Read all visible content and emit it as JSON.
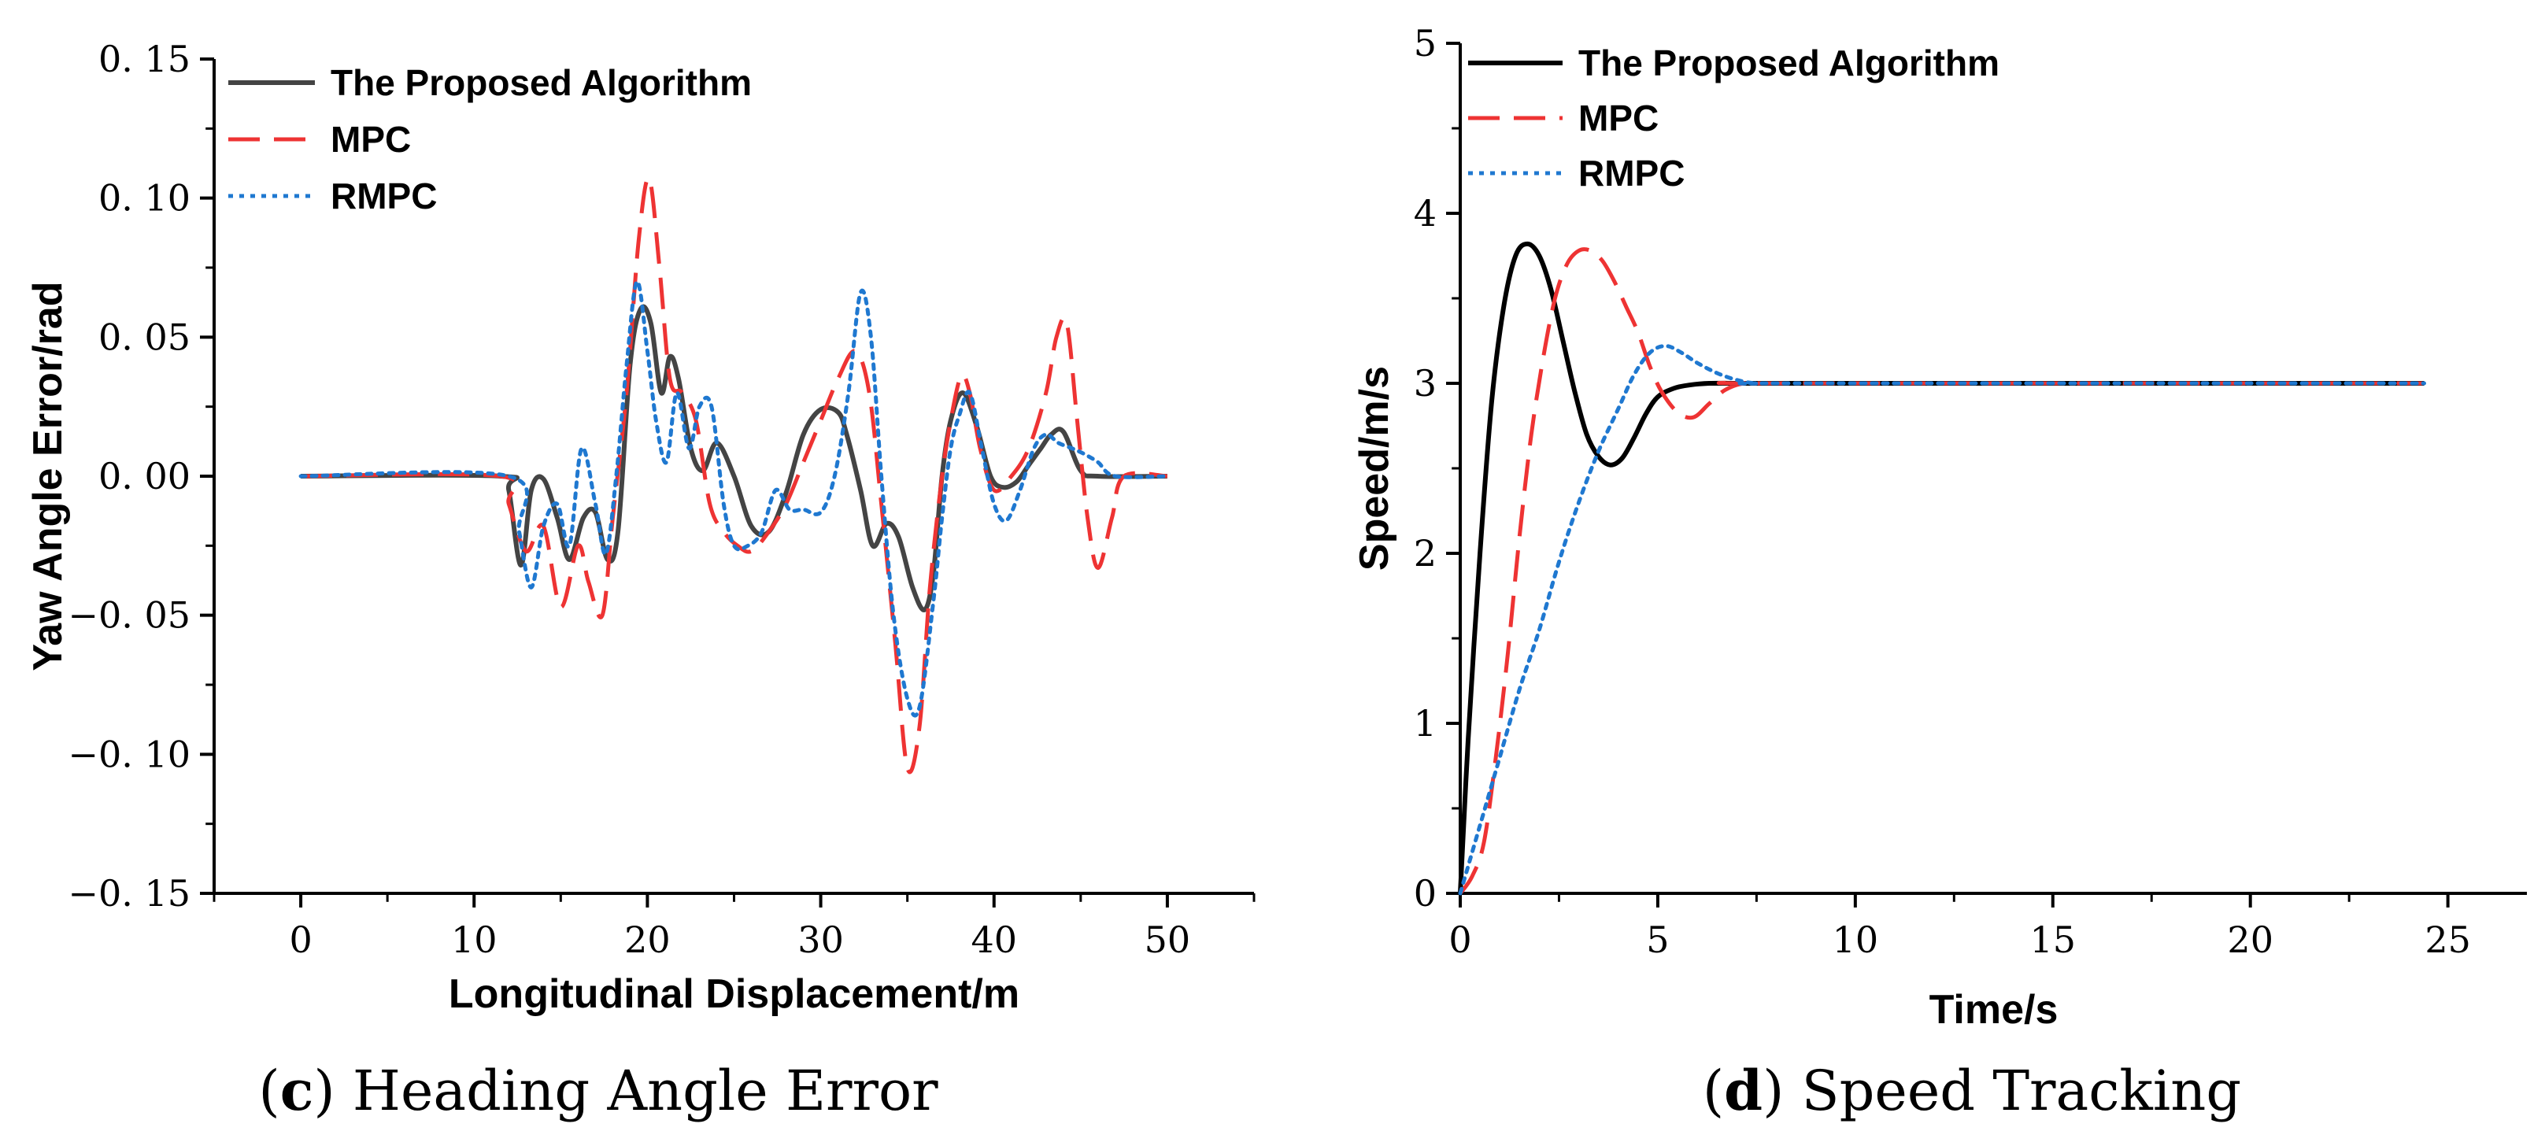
{
  "colors": {
    "proposed_c": "#444444",
    "proposed_d": "#000000",
    "mpc": "#ee3333",
    "rmpc": "#1f78d0"
  },
  "captions": {
    "c": {
      "letter": "c",
      "text": "Heading Angle Error"
    },
    "d": {
      "letter": "d",
      "text": "Speed Tracking"
    }
  },
  "chart_data": [
    {
      "id": "c",
      "type": "line",
      "xlabel": "Longitudinal Displacement/m",
      "ylabel": "Yaw Angle Error/rad",
      "xlim": [
        -5,
        55
      ],
      "ylim": [
        -0.15,
        0.15
      ],
      "xticks": [
        0,
        10,
        20,
        30,
        40,
        50
      ],
      "xtick_labels": [
        "0",
        "10",
        "20",
        "30",
        "40",
        "50"
      ],
      "yticks": [
        -0.15,
        -0.1,
        -0.05,
        0,
        0.05,
        0.1,
        0.15
      ],
      "ytick_labels": [
        "−0. 15",
        "−0. 10",
        "−0. 05",
        "0. 00",
        "0. 05",
        "0. 10",
        "0. 15"
      ],
      "legend_position": "top-left",
      "series": [
        {
          "name": "The Proposed Algorithm",
          "style": "solid",
          "color_key": "proposed_c",
          "x": [
            0,
            11.5,
            12,
            12.7,
            13.3,
            14,
            14.8,
            15.5,
            16.3,
            17,
            17.7,
            18.3,
            19,
            19.6,
            20.2,
            20.8,
            21.3,
            21.8,
            22.5,
            23.2,
            24,
            25,
            26,
            27,
            28,
            29,
            30,
            31,
            31.5,
            32.3,
            33,
            33.8,
            34.5,
            35.3,
            36,
            36.5,
            37,
            37.5,
            38.2,
            39,
            39.8,
            40.5,
            41.3,
            42,
            42.7,
            43.3,
            44,
            45,
            46,
            50
          ],
          "y": [
            0,
            0,
            -0.005,
            -0.032,
            -0.005,
            -0.001,
            -0.015,
            -0.03,
            -0.015,
            -0.013,
            -0.03,
            -0.02,
            0.04,
            0.06,
            0.055,
            0.03,
            0.043,
            0.035,
            0.01,
            0.002,
            0.012,
            0.0,
            -0.018,
            -0.02,
            -0.006,
            0.015,
            0.024,
            0.023,
            0.015,
            -0.005,
            -0.025,
            -0.017,
            -0.022,
            -0.04,
            -0.048,
            -0.035,
            0.0,
            0.02,
            0.03,
            0.018,
            0.0,
            -0.004,
            -0.002,
            0.004,
            0.01,
            0.015,
            0.016,
            0.002,
            0.0,
            0.0
          ]
        },
        {
          "name": "MPC",
          "style": "dashed",
          "color_key": "mpc",
          "x": [
            0,
            11.5,
            12,
            13,
            14,
            15,
            16,
            16.6,
            17.4,
            18,
            18.8,
            19.5,
            20.1,
            20.7,
            21.3,
            22,
            22.8,
            23.6,
            24.4,
            25.2,
            26,
            27,
            28,
            29,
            30,
            31,
            32,
            32.8,
            33.5,
            34.3,
            35,
            35.7,
            36.3,
            37,
            37.5,
            38.1,
            38.6,
            39.2,
            40,
            41,
            42,
            43,
            43.6,
            44.2,
            44.8,
            45.4,
            46,
            46.8,
            47.5,
            50
          ],
          "y": [
            0,
            0,
            -0.01,
            -0.027,
            -0.018,
            -0.047,
            -0.025,
            -0.038,
            -0.05,
            -0.015,
            0.03,
            0.085,
            0.107,
            0.075,
            0.035,
            0.03,
            0.02,
            -0.01,
            -0.02,
            -0.025,
            -0.027,
            -0.02,
            -0.01,
            0.005,
            0.02,
            0.035,
            0.045,
            0.03,
            -0.01,
            -0.06,
            -0.105,
            -0.09,
            -0.04,
            0.0,
            0.02,
            0.036,
            0.03,
            0.01,
            -0.005,
            0.0,
            0.01,
            0.03,
            0.05,
            0.055,
            0.02,
            -0.015,
            -0.033,
            -0.015,
            0.0,
            0.0
          ]
        },
        {
          "name": "RMPC",
          "style": "dotted",
          "color_key": "rmpc",
          "x": [
            0,
            12,
            12.6,
            13.3,
            14,
            14.8,
            15.5,
            16.2,
            17,
            17.6,
            18.2,
            18.8,
            19.4,
            20,
            20.5,
            21.1,
            21.7,
            22.4,
            23,
            23.7,
            24.4,
            25,
            25.8,
            26.6,
            27.4,
            28.2,
            29,
            30,
            30.8,
            31.6,
            32.3,
            32.9,
            33.5,
            34.2,
            35,
            35.7,
            36.5,
            37,
            37.5,
            38,
            38.6,
            39.3,
            40,
            40.7,
            41.5,
            42.3,
            43,
            43.7,
            44.5,
            45.2,
            46,
            47,
            50
          ],
          "y": [
            0,
            0,
            -0.02,
            -0.04,
            -0.018,
            -0.01,
            -0.025,
            0.01,
            -0.01,
            -0.028,
            0.0,
            0.04,
            0.07,
            0.045,
            0.02,
            0.005,
            0.03,
            0.01,
            0.025,
            0.025,
            -0.01,
            -0.025,
            -0.025,
            -0.02,
            -0.005,
            -0.012,
            -0.012,
            -0.013,
            0.0,
            0.03,
            0.066,
            0.05,
            0.0,
            -0.05,
            -0.08,
            -0.083,
            -0.045,
            -0.015,
            0.01,
            0.022,
            0.03,
            0.01,
            -0.01,
            -0.016,
            -0.005,
            0.01,
            0.015,
            0.012,
            0.01,
            0.008,
            0.005,
            0.0,
            0.0
          ]
        }
      ]
    },
    {
      "id": "d",
      "type": "line",
      "xlabel": "Time/s",
      "ylabel": "Speed/m/s",
      "xlim": [
        0,
        27
      ],
      "ylim": [
        0,
        5
      ],
      "xticks": [
        0,
        5,
        10,
        15,
        20,
        25
      ],
      "xtick_labels": [
        "0",
        "5",
        "10",
        "15",
        "20",
        "25"
      ],
      "yticks": [
        0,
        1,
        2,
        3,
        4,
        5
      ],
      "ytick_labels": [
        "0",
        "1",
        "2",
        "3",
        "4",
        "5"
      ],
      "legend_position": "top-left",
      "series": [
        {
          "name": "The Proposed Algorithm",
          "style": "solid",
          "color_key": "proposed_d",
          "x": [
            0,
            0.2,
            0.5,
            0.8,
            1.1,
            1.4,
            1.7,
            2.0,
            2.3,
            2.6,
            2.9,
            3.2,
            3.5,
            3.8,
            4.1,
            4.4,
            4.7,
            5.0,
            5.4,
            5.8,
            6.3,
            7.0,
            8,
            24.4
          ],
          "y": [
            0,
            0.9,
            2.0,
            2.9,
            3.45,
            3.75,
            3.82,
            3.75,
            3.55,
            3.25,
            2.95,
            2.7,
            2.57,
            2.52,
            2.56,
            2.68,
            2.82,
            2.92,
            2.97,
            2.99,
            3.0,
            3.0,
            3.0,
            3.0
          ]
        },
        {
          "name": "MPC",
          "style": "dashed",
          "color_key": "mpc",
          "x": [
            0,
            0.3,
            0.6,
            0.9,
            1.2,
            1.5,
            1.8,
            2.1,
            2.4,
            2.7,
            3.0,
            3.3,
            3.6,
            3.9,
            4.2,
            4.5,
            4.8,
            5.1,
            5.5,
            5.9,
            6.3,
            6.7,
            7.2,
            8,
            24.4
          ],
          "y": [
            0,
            0.1,
            0.3,
            0.8,
            1.4,
            2.1,
            2.7,
            3.15,
            3.5,
            3.7,
            3.78,
            3.78,
            3.72,
            3.6,
            3.45,
            3.3,
            3.1,
            2.95,
            2.83,
            2.8,
            2.88,
            2.96,
            3.0,
            3.0,
            3.0
          ]
        },
        {
          "name": "RMPC",
          "style": "dotted",
          "color_key": "rmpc",
          "x": [
            0,
            0.5,
            1.0,
            1.5,
            2.0,
            2.5,
            3.0,
            3.5,
            4.0,
            4.4,
            4.8,
            5.2,
            5.6,
            6.0,
            6.5,
            7.0,
            7.5,
            8.5,
            24.4
          ],
          "y": [
            0,
            0.4,
            0.8,
            1.2,
            1.55,
            1.95,
            2.3,
            2.6,
            2.85,
            3.05,
            3.18,
            3.22,
            3.18,
            3.12,
            3.06,
            3.02,
            3.0,
            3.0,
            3.0
          ]
        }
      ]
    }
  ]
}
